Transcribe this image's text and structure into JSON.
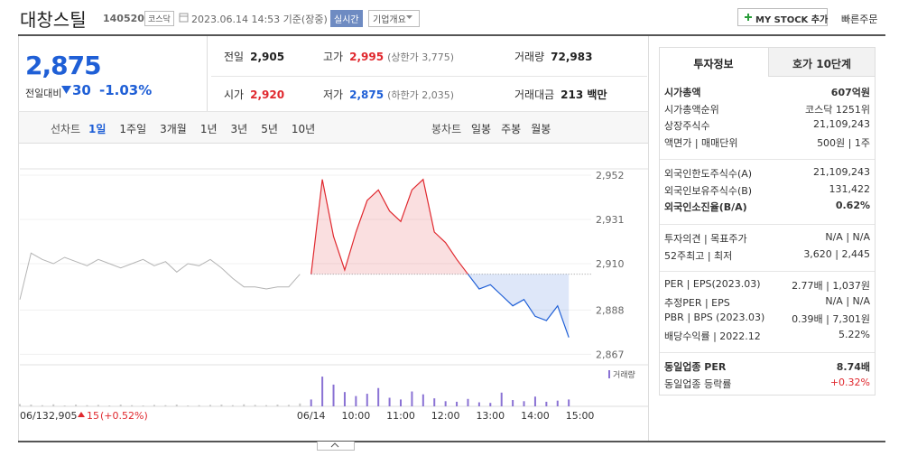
{
  "header": {
    "name": "대창스틸",
    "code": "140520",
    "market": "코스닥",
    "datetime": "2023.06.14 14:53 기준(장중)",
    "realtime": "실시간",
    "company": "기업개요",
    "mystock": "MY STOCK 추가",
    "quick_order": "빠른주문"
  },
  "price": {
    "current": "2,875",
    "change_label": "전일대비",
    "change": "30",
    "change_pct": "-1.03%"
  },
  "summary": [
    [
      {
        "label": "전일",
        "value": "2,905"
      },
      {
        "label": "고가",
        "value": "2,995",
        "note": "(상한가 3,775)",
        "color": "#e0282e"
      },
      {
        "label": "거래량",
        "value": "72,983"
      }
    ],
    [
      {
        "label": "시가",
        "value": "2,920",
        "color": "#e0282e"
      },
      {
        "label": "저가",
        "value": "2,875",
        "note": "(하한가 2,035)",
        "color": "#1f5fd6"
      },
      {
        "label": "거래대금",
        "value": "213 백만"
      }
    ]
  ],
  "tabs": {
    "line_label": "선차트",
    "periods": [
      "1일",
      "1주일",
      "3개월",
      "1년",
      "3년",
      "5년",
      "10년"
    ],
    "candle_label": "봉차트",
    "candles": [
      "일봉",
      "주봉",
      "월봉"
    ]
  },
  "chart_data": {
    "type": "line",
    "categories": [
      "06/13",
      null,
      null,
      null,
      null,
      null,
      null,
      null,
      null,
      null,
      null,
      null,
      null,
      null,
      null,
      null,
      null,
      null,
      null,
      null,
      null,
      null,
      null,
      null,
      null,
      null,
      "06/14",
      null,
      null,
      null,
      "10:00",
      null,
      null,
      null,
      "11:00",
      null,
      null,
      null,
      "12:00",
      null,
      null,
      null,
      "13:00",
      null,
      null,
      null,
      "14:00",
      null,
      null,
      null,
      "15:00",
      null
    ],
    "series": [
      {
        "color": "#b4b4b4",
        "values": [
          2893,
          2915,
          2912,
          2910,
          2913,
          2911,
          2909,
          2912,
          2910,
          2908,
          2910,
          2912,
          2909,
          2911,
          2906,
          2910,
          2909,
          2912,
          2908,
          2903,
          2899,
          2899,
          2898,
          2899,
          2899,
          2905,
          null,
          null,
          null,
          null,
          null,
          null,
          null,
          null,
          null,
          null,
          null,
          null,
          null,
          null,
          null,
          null,
          null,
          null,
          null,
          null,
          null,
          null,
          null,
          null,
          null,
          null
        ]
      },
      {
        "color": "#e0282e",
        "color_below": "#1f5fd6",
        "values": [
          null,
          null,
          null,
          null,
          null,
          null,
          null,
          null,
          null,
          null,
          null,
          null,
          null,
          null,
          null,
          null,
          null,
          null,
          null,
          null,
          null,
          null,
          null,
          null,
          null,
          null,
          2905,
          2950,
          2923,
          2907,
          2925,
          2940,
          2945,
          2935,
          2930,
          2945,
          2950,
          2925,
          2920,
          2912,
          2905,
          2898,
          2900,
          2895,
          2890,
          2893,
          2885,
          2883,
          2890,
          2875,
          null,
          null
        ]
      }
    ],
    "baseline": 2905,
    "ylim": [
      2862,
      2955
    ],
    "yticks": [
      {
        "value": 2952,
        "label": "2,952"
      },
      {
        "value": 2931,
        "label": "2,931"
      },
      {
        "value": 2910,
        "label": "2,910"
      },
      {
        "value": 2888,
        "label": "2,888"
      },
      {
        "value": 2867,
        "label": "2,867"
      }
    ],
    "volume": {
      "name": "거래량",
      "color": "#8a72d4",
      "color_prev": "#c8c8c8",
      "values": [
        400,
        300,
        200,
        350,
        150,
        300,
        200,
        250,
        150,
        300,
        200,
        150,
        250,
        200,
        300,
        150,
        200,
        250,
        300,
        200,
        350,
        250,
        200,
        300,
        250,
        500,
        1200,
        5200,
        3800,
        2500,
        1800,
        2200,
        3200,
        1500,
        1200,
        2600,
        2100,
        1400,
        900,
        800,
        1300,
        700,
        600,
        2400,
        1100,
        900,
        1700,
        800,
        1000,
        1200,
        null,
        null
      ]
    },
    "y2lim": [
      0,
      6000
    ],
    "prev_note": {
      "close": "2,905",
      "change": "15",
      "pct": "(+0.52%)"
    },
    "grid": true
  },
  "invest": {
    "tabs": [
      "투자정보",
      "호가 10단계"
    ],
    "groups": [
      [
        {
          "label": "시가총액",
          "value": "607억원",
          "bold": true
        },
        {
          "label": "시가총액순위",
          "value": "코스닥 1251위"
        },
        {
          "label": "상장주식수",
          "value": "21,109,243"
        },
        {
          "label": "액면가 | 매매단위",
          "value": "500원 | 1주"
        }
      ],
      [
        {
          "label": "외국인한도주식수(A)",
          "value": "21,109,243"
        },
        {
          "label": "외국인보유주식수(B)",
          "value": "131,422"
        },
        {
          "label": "외국인소진율(B/A)",
          "value": "0.62%",
          "bold": true
        }
      ],
      [
        {
          "label": "투자의견 | 목표주가",
          "value": "N/A | N/A"
        },
        {
          "label": "52주최고 | 최저",
          "value": "3,620 | 2,445"
        }
      ],
      [
        {
          "label": "PER | EPS(2023.03)",
          "value": "2.77배 | 1,037원"
        },
        {
          "label": "추정PER | EPS",
          "value": "N/A | N/A"
        },
        {
          "label": "PBR | BPS (2023.03)",
          "value": "0.39배 | 7,301원"
        },
        {
          "label": "배당수익률 | 2022.12",
          "value": "5.22%"
        }
      ],
      [
        {
          "label": "동일업종 PER",
          "value": "8.74배",
          "bold": true
        },
        {
          "label": "동일업종 등락률",
          "value": "+0.32%",
          "color": "#e0282e"
        }
      ]
    ]
  }
}
